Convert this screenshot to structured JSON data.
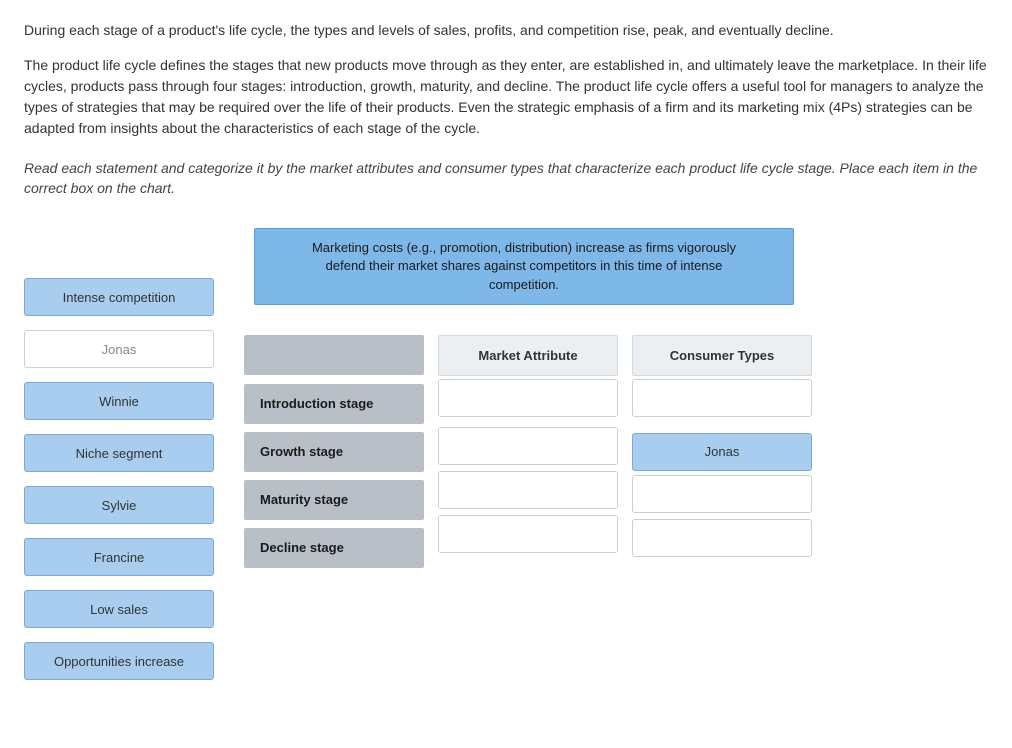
{
  "intro": {
    "para1": "During each stage of a product's life cycle, the types and levels of sales, profits, and competition rise, peak, and eventually decline.",
    "para2": "The product life cycle defines the stages that new products move through as they enter, are established in, and ultimately leave the marketplace. In their life cycles, products pass through four stages: introduction, growth, maturity, and decline. The product life cycle offers a useful tool for managers to analyze the types of strategies that may be required over the life of their products. Even the strategic emphasis of a firm and its marketing mix (4Ps) strategies can be adapted from insights about the characteristics of each stage of the cycle."
  },
  "instruction": "Read each statement and categorize it by the market attributes and consumer types that characterize each product life cycle stage. Place each item in the correct box on the chart.",
  "draggables": [
    {
      "label": "Intense competition",
      "state": "active"
    },
    {
      "label": "Jonas",
      "state": "inactive"
    },
    {
      "label": "Winnie",
      "state": "active"
    },
    {
      "label": "Niche segment",
      "state": "active"
    },
    {
      "label": "Sylvie",
      "state": "active"
    },
    {
      "label": "Francine",
      "state": "active"
    },
    {
      "label": "Low sales",
      "state": "active"
    },
    {
      "label": "Opportunities increase",
      "state": "active"
    }
  ],
  "banner": "Marketing costs (e.g., promotion, distribution) increase as firms vigorously defend their market shares against competitors in this time of intense competition.",
  "grid": {
    "col_headers": [
      "Market Attribute",
      "Consumer Types"
    ],
    "rows": [
      {
        "label": "Introduction stage",
        "cells": [
          "",
          ""
        ]
      },
      {
        "label": "Growth stage",
        "cells": [
          "",
          "Jonas"
        ]
      },
      {
        "label": "Maturity stage",
        "cells": [
          "",
          ""
        ]
      },
      {
        "label": "Decline stage",
        "cells": [
          "",
          ""
        ]
      }
    ]
  },
  "colors": {
    "draggable_bg": "#a9cdee",
    "draggable_border": "#7aa9d6",
    "inactive_bg": "#ffffff",
    "banner_bg": "#7db8e8",
    "rowlabel_bg": "#b8bfc6",
    "header_bg": "#eceff2",
    "dropzone_border": "#cfcfcf"
  }
}
